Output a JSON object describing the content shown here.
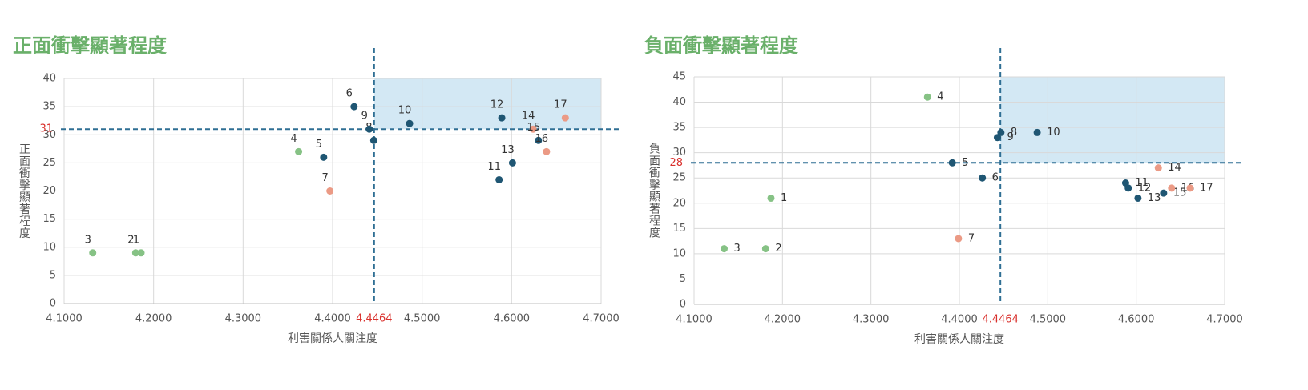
{
  "chart_data": [
    {
      "type": "scatter",
      "title": "正面衝擊顯著程度",
      "x_label": "利害關係人關注度",
      "y_label": "正面衝擊顯著程度",
      "xlim": [
        4.1,
        4.7
      ],
      "ylim": [
        0,
        40
      ],
      "xticks": [
        {
          "value": 4.1,
          "label": "4.1000"
        },
        {
          "value": 4.2,
          "label": "4.2000"
        },
        {
          "value": 4.3,
          "label": "4.3000"
        },
        {
          "value": 4.4,
          "label": "4.4000"
        },
        {
          "value": 4.5,
          "label": "4.5000"
        },
        {
          "value": 4.6,
          "label": "4.6000"
        },
        {
          "value": 4.7,
          "label": "4.7000"
        }
      ],
      "yticks": [
        0,
        5,
        10,
        15,
        20,
        25,
        30,
        35,
        40
      ],
      "x_ref": {
        "value": 4.4464,
        "label": "4.4464"
      },
      "y_ref": 31,
      "grid": true,
      "point_labels": [
        "1",
        "2",
        "3",
        "4",
        "5",
        "6",
        "7",
        "8",
        "9",
        "10",
        "11",
        "12",
        "13",
        "14",
        "15",
        "16",
        "17"
      ],
      "x": [
        4.186,
        4.18,
        4.132,
        4.362,
        4.39,
        4.424,
        4.397,
        4.446,
        4.441,
        4.486,
        4.586,
        4.589,
        4.601,
        4.624,
        4.63,
        4.639,
        4.66
      ],
      "values": [
        9,
        9,
        9,
        27,
        26,
        35,
        20,
        29,
        31,
        32,
        22,
        33,
        25,
        31,
        29,
        27,
        33
      ],
      "colors": [
        "#86c285",
        "#86c285",
        "#86c285",
        "#86c285",
        "#1f5673",
        "#1f5673",
        "#eb9a85",
        "#1f5673",
        "#1f5673",
        "#1f5673",
        "#1f5673",
        "#1f5673",
        "#1f5673",
        "#eb9a85",
        "#1f5673",
        "#eb9a85",
        "#eb9a85"
      ]
    },
    {
      "type": "scatter",
      "title": "負面衝擊顯著程度",
      "x_label": "利害關係人關注度",
      "y_label": "負面衝擊顯著程度",
      "xlim": [
        4.1,
        4.7
      ],
      "ylim": [
        0,
        45
      ],
      "xticks": [
        {
          "value": 4.1,
          "label": "4.1000"
        },
        {
          "value": 4.2,
          "label": "4.2000"
        },
        {
          "value": 4.3,
          "label": "4.3000"
        },
        {
          "value": 4.4,
          "label": "4.4000"
        },
        {
          "value": 4.5,
          "label": "4.5000"
        },
        {
          "value": 4.6,
          "label": "4.6000"
        },
        {
          "value": 4.7,
          "label": "4.7000"
        }
      ],
      "yticks": [
        0,
        5,
        10,
        15,
        20,
        25,
        30,
        35,
        40,
        45
      ],
      "x_ref": {
        "value": 4.4464,
        "label": "4.4464"
      },
      "y_ref": 28,
      "grid": true,
      "point_labels": [
        "1",
        "2",
        "3",
        "4",
        "5",
        "6",
        "7",
        "8",
        "9",
        "10",
        "11",
        "12",
        "13",
        "14",
        "15",
        "16",
        "17"
      ],
      "x": [
        4.187,
        4.181,
        4.134,
        4.364,
        4.392,
        4.426,
        4.399,
        4.447,
        4.443,
        4.488,
        4.588,
        4.591,
        4.602,
        4.625,
        4.631,
        4.64,
        4.661
      ],
      "values": [
        21,
        11,
        11,
        41,
        28,
        25,
        13,
        34,
        33,
        34,
        24,
        23,
        21,
        27,
        22,
        23,
        23
      ],
      "colors": [
        "#86c285",
        "#86c285",
        "#86c285",
        "#86c285",
        "#1f5673",
        "#1f5673",
        "#eb9a85",
        "#1f5673",
        "#1f5673",
        "#1f5673",
        "#1f5673",
        "#1f5673",
        "#1f5673",
        "#eb9a85",
        "#1f5673",
        "#eb9a85",
        "#eb9a85"
      ]
    }
  ]
}
